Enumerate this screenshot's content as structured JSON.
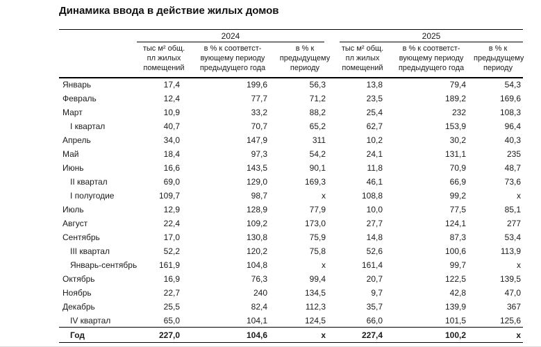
{
  "title": "Динамика ввода в действие жилых домов",
  "table": {
    "years": [
      "2024",
      "2025"
    ],
    "sub_columns": [
      "тыс м² общ.\nпл жилых\nпомещений",
      "в % к соответст-\nвующему периоду\nпредыдущего года",
      "в % к\nпредыдущему\nпериоду"
    ]
  },
  "chart_data": {
    "type": "table",
    "title": "Динамика ввода в действие жилых домов",
    "column_groups": [
      "2024",
      "2025"
    ],
    "columns_per_group": [
      "тыс м² общ. пл жилых помещений",
      "в % к соответствующему периоду предыдущего года",
      "в % к предыдущему периоду"
    ],
    "na_marker": "x",
    "rows": [
      {
        "label": "Январь",
        "indent": false,
        "bold": false,
        "values": [
          "17,4",
          "199,6",
          "56,3",
          "13,8",
          "79,4",
          "54,3"
        ]
      },
      {
        "label": "Февраль",
        "indent": false,
        "bold": false,
        "values": [
          "12,4",
          "77,7",
          "71,2",
          "23,5",
          "189,2",
          "169,6"
        ]
      },
      {
        "label": "Март",
        "indent": false,
        "bold": false,
        "values": [
          "10,9",
          "33,2",
          "88,2",
          "25,4",
          "232",
          "108,3"
        ]
      },
      {
        "label": "I квартал",
        "indent": true,
        "bold": false,
        "values": [
          "40,7",
          "70,7",
          "65,2",
          "62,7",
          "153,9",
          "96,4"
        ]
      },
      {
        "label": "Апрель",
        "indent": false,
        "bold": false,
        "values": [
          "34,0",
          "147,9",
          "311",
          "10,2",
          "30,2",
          "40,3"
        ]
      },
      {
        "label": "Май",
        "indent": false,
        "bold": false,
        "values": [
          "18,4",
          "97,3",
          "54,2",
          "24,1",
          "131,1",
          "235"
        ]
      },
      {
        "label": "Июнь",
        "indent": false,
        "bold": false,
        "values": [
          "16,6",
          "143,5",
          "90,1",
          "11,8",
          "70,9",
          "48,7"
        ]
      },
      {
        "label": "II квартал",
        "indent": true,
        "bold": false,
        "values": [
          "69,0",
          "129,0",
          "169,3",
          "46,1",
          "66,9",
          "73,6"
        ]
      },
      {
        "label": "I полугодие",
        "indent": true,
        "bold": false,
        "values": [
          "109,7",
          "98,7",
          "x",
          "108,8",
          "99,2",
          "x"
        ]
      },
      {
        "label": "Июль",
        "indent": false,
        "bold": false,
        "values": [
          "12,9",
          "128,9",
          "77,9",
          "10,0",
          "77,5",
          "85,1"
        ]
      },
      {
        "label": "Август",
        "indent": false,
        "bold": false,
        "values": [
          "22,4",
          "109,2",
          "173,0",
          "27,7",
          "124,1",
          "277"
        ]
      },
      {
        "label": "Сентябрь",
        "indent": false,
        "bold": false,
        "values": [
          "17,0",
          "130,8",
          "75,9",
          "14,8",
          "87,3",
          "53,4"
        ]
      },
      {
        "label": "III квартал",
        "indent": true,
        "bold": false,
        "values": [
          "52,2",
          "120,2",
          "75,8",
          "52,6",
          "100,6",
          "113,9"
        ]
      },
      {
        "label": "Январь-сентябрь",
        "indent": true,
        "bold": false,
        "values": [
          "161,9",
          "104,8",
          "x",
          "161,4",
          "99,7",
          "x"
        ]
      },
      {
        "label": "Октябрь",
        "indent": false,
        "bold": false,
        "values": [
          "16,9",
          "76,3",
          "99,4",
          "20,7",
          "122,5",
          "139,5"
        ]
      },
      {
        "label": "Ноябрь",
        "indent": false,
        "bold": false,
        "values": [
          "22,7",
          "240",
          "134,5",
          "9,7",
          "42,8",
          "47,0"
        ]
      },
      {
        "label": "Декабрь",
        "indent": false,
        "bold": false,
        "values": [
          "25,5",
          "82,4",
          "112,3",
          "35,7",
          "139,9",
          "367"
        ]
      },
      {
        "label": "IV квартал",
        "indent": true,
        "bold": false,
        "values": [
          "65,0",
          "104,1",
          "124,5",
          "66,0",
          "101,5",
          "125,6"
        ]
      },
      {
        "label": "Год",
        "indent": true,
        "bold": true,
        "values": [
          "227,0",
          "104,6",
          "x",
          "227,4",
          "100,2",
          "x"
        ]
      }
    ]
  }
}
